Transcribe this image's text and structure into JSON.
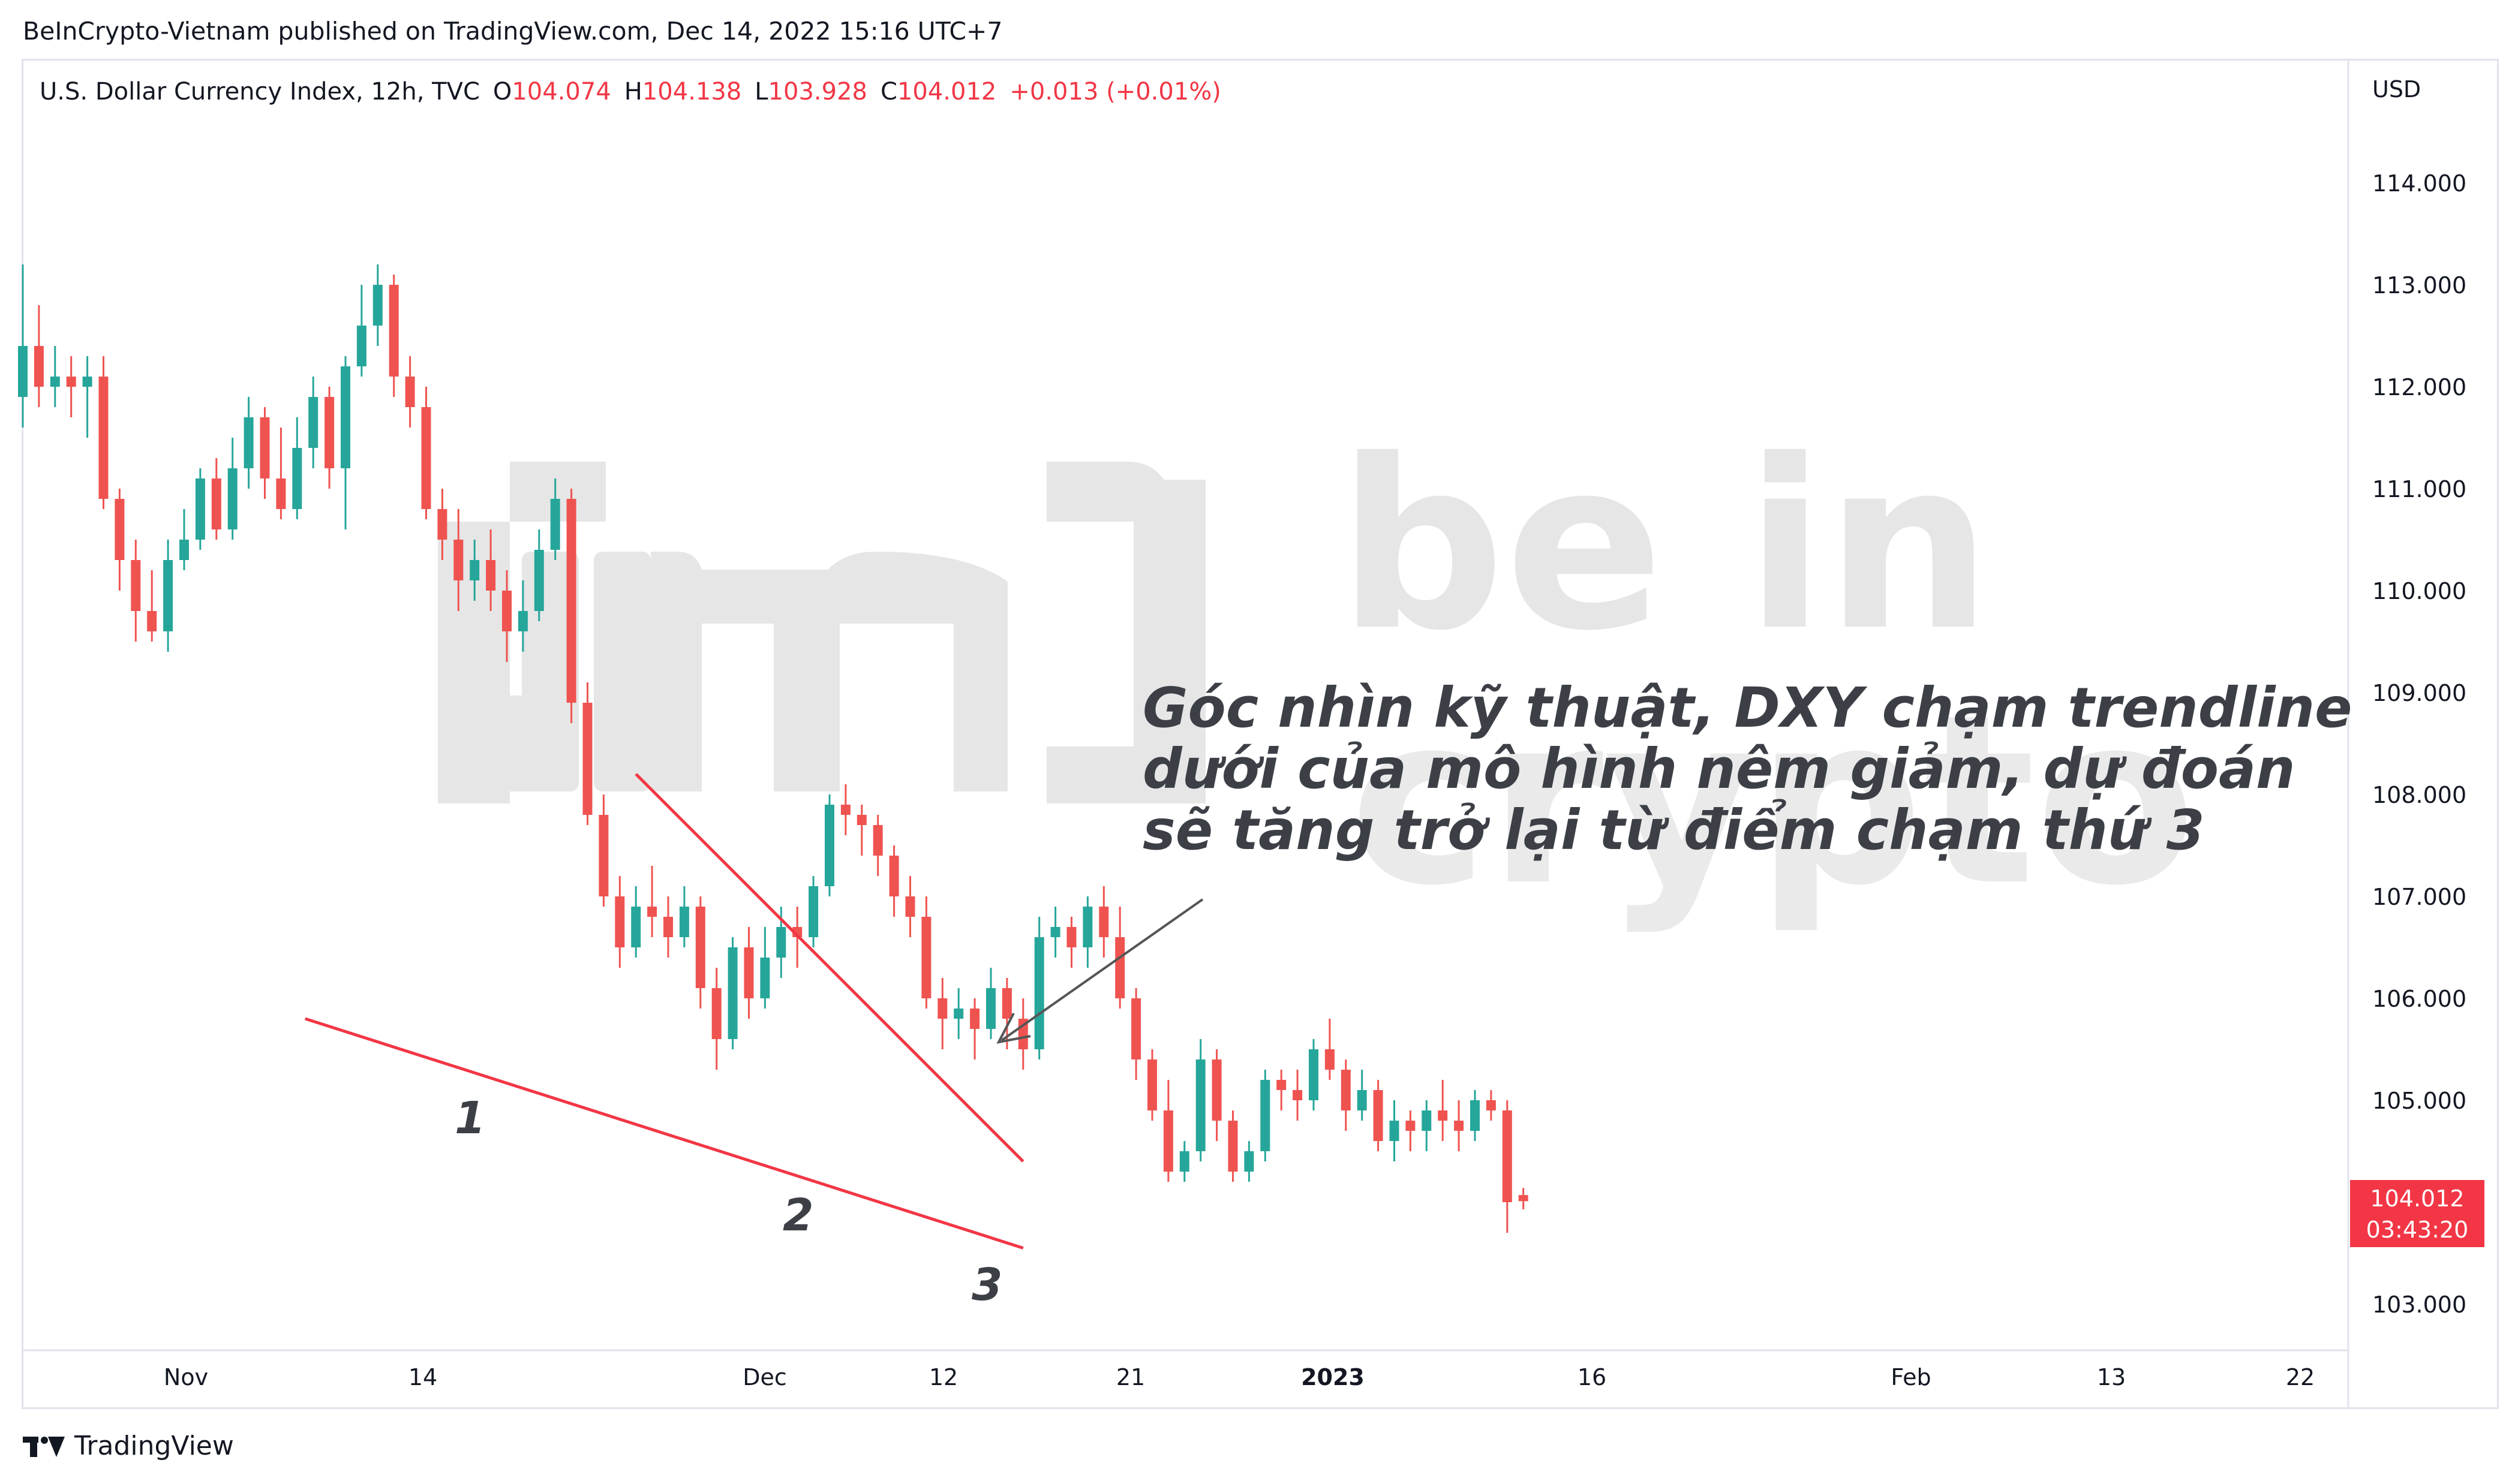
{
  "header": {
    "publisher": "BeInCrypto-Vietnam published on TradingView.com, Dec 14, 2022 15:16 UTC+7"
  },
  "symbol": {
    "title": "U.S. Dollar Currency Index, 12h, TVC",
    "o_label": "O",
    "o_value": "104.074",
    "h_label": "H",
    "h_value": "104.138",
    "l_label": "L",
    "l_value": "103.928",
    "c_label": "C",
    "c_value": "104.012",
    "change": "+0.013 (+0.01%)"
  },
  "price_axis": {
    "currency": "USD"
  },
  "last_price": {
    "value": "104.012",
    "countdown": "03:43:20"
  },
  "annotation": {
    "lines": [
      "Góc nhìn kỹ thuật, DXY chạm trendline",
      "dưới của mô hình nêm giảm, dự đoán",
      "sẽ tăng trở lại từ điểm chạm thứ 3"
    ],
    "touch_labels": [
      "1",
      "2",
      "3"
    ]
  },
  "watermark": {
    "text1": "be in",
    "text2": "crypto"
  },
  "footer": {
    "brand": "TradingView"
  },
  "colors": {
    "up": "#26a69a",
    "down": "#ef5350",
    "trendline": "#f23645",
    "price_tag": "#f23645",
    "grid": "#e0e3eb"
  },
  "chart_data": {
    "type": "candlestick",
    "title": "U.S. Dollar Currency Index, 12h, TVC",
    "ylabel": "USD",
    "ylim": [
      102.6,
      115.0
    ],
    "y_ticks": [
      "103.000",
      "104.000",
      "105.000",
      "106.000",
      "107.000",
      "108.000",
      "109.000",
      "110.000",
      "111.000",
      "112.000",
      "113.000",
      "114.000"
    ],
    "x_ticks": [
      "Nov",
      "14",
      "Dec",
      "12",
      "21",
      "2023",
      "16",
      "Feb",
      "13",
      "22"
    ],
    "interval": "12h",
    "candles": [
      [
        111.9,
        112.4,
        113.2,
        111.6
      ],
      [
        112.4,
        112.0,
        112.8,
        111.8
      ],
      [
        112.0,
        112.1,
        112.4,
        111.8
      ],
      [
        112.1,
        112.0,
        112.3,
        111.7
      ],
      [
        112.0,
        112.1,
        112.3,
        111.5
      ],
      [
        112.1,
        110.9,
        112.3,
        110.8
      ],
      [
        110.9,
        110.3,
        111.0,
        110.0
      ],
      [
        110.3,
        109.8,
        110.5,
        109.5
      ],
      [
        109.8,
        109.6,
        110.2,
        109.5
      ],
      [
        109.6,
        110.3,
        110.5,
        109.4
      ],
      [
        110.3,
        110.5,
        110.8,
        110.2
      ],
      [
        110.5,
        111.1,
        111.2,
        110.4
      ],
      [
        111.1,
        110.6,
        111.3,
        110.5
      ],
      [
        110.6,
        111.2,
        111.5,
        110.5
      ],
      [
        111.2,
        111.7,
        111.9,
        111.0
      ],
      [
        111.7,
        111.1,
        111.8,
        110.9
      ],
      [
        111.1,
        110.8,
        111.6,
        110.7
      ],
      [
        110.8,
        111.4,
        111.7,
        110.7
      ],
      [
        111.4,
        111.9,
        112.1,
        111.2
      ],
      [
        111.9,
        111.2,
        112.0,
        111.0
      ],
      [
        111.2,
        112.2,
        112.3,
        110.6
      ],
      [
        112.2,
        112.6,
        113.0,
        112.1
      ],
      [
        112.6,
        113.0,
        113.2,
        112.4
      ],
      [
        113.0,
        112.1,
        113.1,
        111.9
      ],
      [
        112.1,
        111.8,
        112.3,
        111.6
      ],
      [
        111.8,
        110.8,
        112.0,
        110.7
      ],
      [
        110.8,
        110.5,
        111.0,
        110.3
      ],
      [
        110.5,
        110.1,
        110.8,
        109.8
      ],
      [
        110.1,
        110.3,
        110.5,
        109.9
      ],
      [
        110.3,
        110.0,
        110.6,
        109.8
      ],
      [
        110.0,
        109.6,
        110.2,
        109.3
      ],
      [
        109.6,
        109.8,
        110.1,
        109.4
      ],
      [
        109.8,
        110.4,
        110.6,
        109.7
      ],
      [
        110.4,
        110.9,
        111.1,
        110.3
      ],
      [
        110.9,
        108.9,
        111.0,
        108.7
      ],
      [
        108.9,
        107.8,
        109.1,
        107.7
      ],
      [
        107.8,
        107.0,
        108.0,
        106.9
      ],
      [
        107.0,
        106.5,
        107.2,
        106.3
      ],
      [
        106.5,
        106.9,
        107.1,
        106.4
      ],
      [
        106.9,
        106.8,
        107.3,
        106.6
      ],
      [
        106.8,
        106.6,
        107.0,
        106.4
      ],
      [
        106.6,
        106.9,
        107.1,
        106.5
      ],
      [
        106.9,
        106.1,
        107.0,
        105.9
      ],
      [
        106.1,
        105.6,
        106.3,
        105.3
      ],
      [
        105.6,
        106.5,
        106.6,
        105.5
      ],
      [
        106.5,
        106.0,
        106.7,
        105.8
      ],
      [
        106.0,
        106.4,
        106.7,
        105.9
      ],
      [
        106.4,
        106.7,
        106.9,
        106.2
      ],
      [
        106.7,
        106.6,
        106.9,
        106.3
      ],
      [
        106.6,
        107.1,
        107.2,
        106.5
      ],
      [
        107.1,
        107.9,
        108.0,
        107.0
      ],
      [
        107.9,
        107.8,
        108.1,
        107.6
      ],
      [
        107.8,
        107.7,
        107.9,
        107.4
      ],
      [
        107.7,
        107.4,
        107.8,
        107.2
      ],
      [
        107.4,
        107.0,
        107.5,
        106.8
      ],
      [
        107.0,
        106.8,
        107.2,
        106.6
      ],
      [
        106.8,
        106.0,
        107.0,
        105.9
      ],
      [
        106.0,
        105.8,
        106.2,
        105.5
      ],
      [
        105.8,
        105.9,
        106.1,
        105.6
      ],
      [
        105.9,
        105.7,
        106.0,
        105.4
      ],
      [
        105.7,
        106.1,
        106.3,
        105.6
      ],
      [
        106.1,
        105.8,
        106.2,
        105.5
      ],
      [
        105.8,
        105.5,
        106.0,
        105.3
      ],
      [
        105.5,
        106.6,
        106.8,
        105.4
      ],
      [
        106.6,
        106.7,
        106.9,
        106.4
      ],
      [
        106.7,
        106.5,
        106.8,
        106.3
      ],
      [
        106.5,
        106.9,
        107.0,
        106.3
      ],
      [
        106.9,
        106.6,
        107.1,
        106.4
      ],
      [
        106.6,
        106.0,
        106.9,
        105.9
      ],
      [
        106.0,
        105.4,
        106.1,
        105.2
      ],
      [
        105.4,
        104.9,
        105.5,
        104.8
      ],
      [
        104.9,
        104.3,
        105.2,
        104.2
      ],
      [
        104.3,
        104.5,
        104.6,
        104.2
      ],
      [
        104.5,
        105.4,
        105.6,
        104.4
      ],
      [
        105.4,
        104.8,
        105.5,
        104.6
      ],
      [
        104.8,
        104.3,
        104.9,
        104.2
      ],
      [
        104.3,
        104.5,
        104.6,
        104.2
      ],
      [
        104.5,
        105.2,
        105.3,
        104.4
      ],
      [
        105.2,
        105.1,
        105.3,
        104.9
      ],
      [
        105.1,
        105.0,
        105.3,
        104.8
      ],
      [
        105.0,
        105.5,
        105.6,
        104.9
      ],
      [
        105.5,
        105.3,
        105.8,
        105.2
      ],
      [
        105.3,
        104.9,
        105.4,
        104.7
      ],
      [
        104.9,
        105.1,
        105.3,
        104.8
      ],
      [
        105.1,
        104.6,
        105.2,
        104.5
      ],
      [
        104.6,
        104.8,
        105.0,
        104.4
      ],
      [
        104.8,
        104.7,
        104.9,
        104.5
      ],
      [
        104.7,
        104.9,
        105.0,
        104.5
      ],
      [
        104.9,
        104.8,
        105.2,
        104.6
      ],
      [
        104.8,
        104.7,
        105.0,
        104.5
      ],
      [
        104.7,
        105.0,
        105.1,
        104.6
      ],
      [
        105.0,
        104.9,
        105.1,
        104.8
      ],
      [
        104.9,
        104.0,
        105.0,
        103.7
      ],
      [
        104.07,
        104.01,
        104.14,
        103.93
      ]
    ],
    "trendlines": [
      {
        "name": "lower",
        "from": [
          17.5,
          105.8
        ],
        "to": [
          62,
          103.55
        ]
      },
      {
        "name": "upper",
        "from": [
          38,
          108.2
        ],
        "to": [
          62,
          104.4
        ]
      }
    ],
    "touch_points": [
      {
        "label": "1",
        "bar": 26
      },
      {
        "label": "2",
        "bar": 46
      },
      {
        "label": "3",
        "bar": 57
      }
    ]
  }
}
